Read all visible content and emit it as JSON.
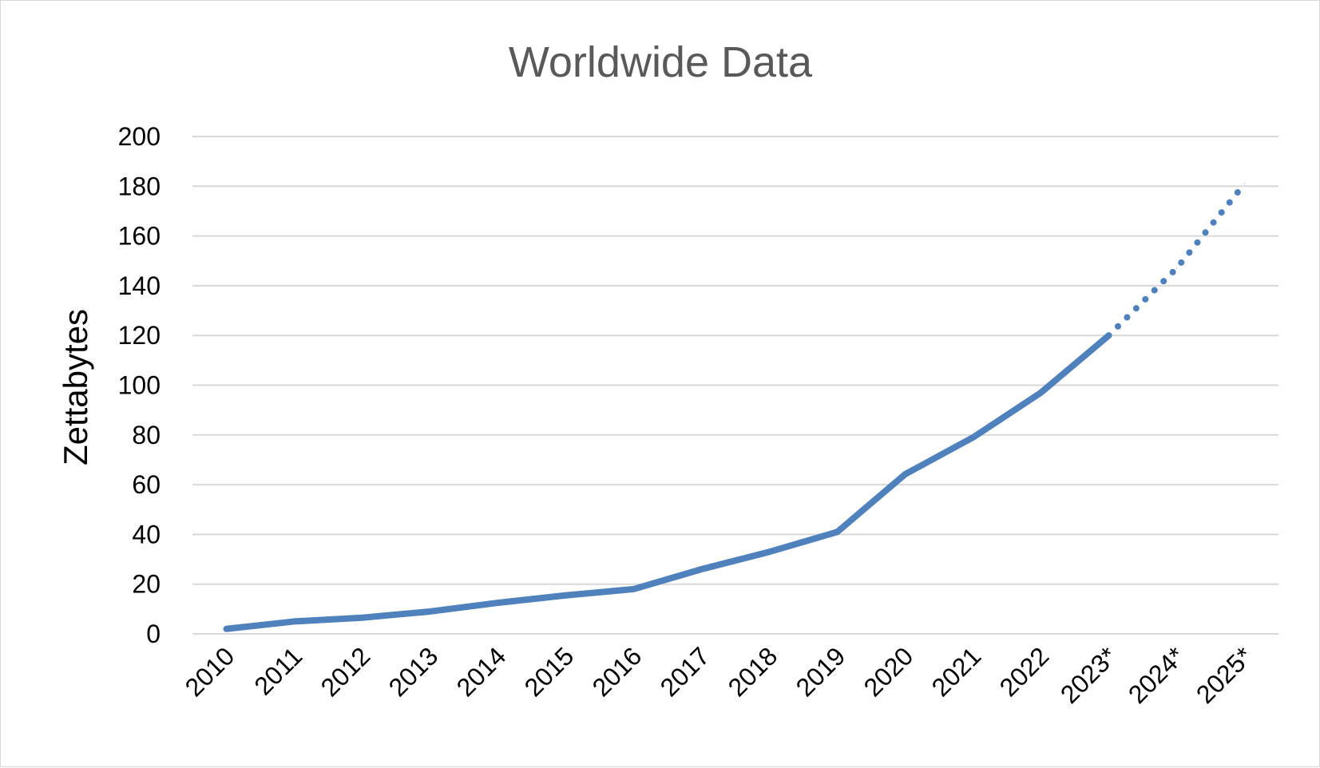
{
  "chart_data": {
    "type": "line",
    "title": "Worldwide Data",
    "xlabel": "",
    "ylabel": "Zettabytes",
    "ylim": [
      0,
      200
    ],
    "yticks": [
      0,
      20,
      40,
      60,
      80,
      100,
      120,
      140,
      160,
      180,
      200
    ],
    "grid": true,
    "legend": "none",
    "categories": [
      "2010",
      "2011",
      "2012",
      "2013",
      "2014",
      "2015",
      "2016",
      "2017",
      "2018",
      "2019",
      "2020",
      "2021",
      "2022",
      "2023*",
      "2024*",
      "2025*"
    ],
    "series": [
      {
        "values": [
          2,
          5,
          6.5,
          9,
          12.5,
          15.5,
          18,
          26,
          33,
          41,
          64.2,
          79,
          97,
          120,
          147,
          181
        ],
        "color": "#4f81bd",
        "projected_from_index": 13
      }
    ],
    "gridline_color": "#d9d9d9",
    "title_color": "#595959"
  }
}
